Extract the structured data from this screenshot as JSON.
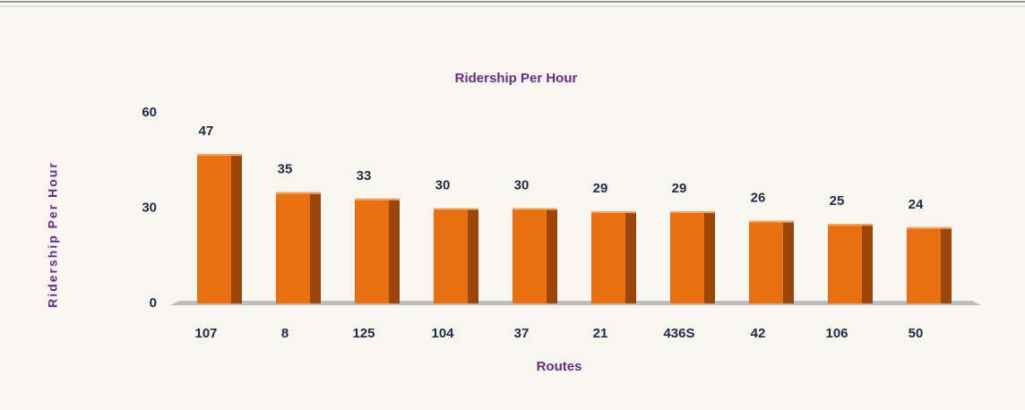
{
  "chart_data": {
    "type": "bar",
    "title": "Ridership Per Hour",
    "y_label": "Ridership Per Hour",
    "x_label": "Routes",
    "categories": [
      "107",
      "8",
      "125",
      "104",
      "37",
      "21",
      "436S",
      "42",
      "106",
      "50"
    ],
    "values": [
      47,
      35,
      33,
      30,
      30,
      29,
      29,
      26,
      25,
      24
    ],
    "color": "#e8700e",
    "ylim": [
      0,
      60
    ],
    "yticks": [
      0,
      30,
      60
    ],
    "grid": false,
    "data_labels": true
  }
}
